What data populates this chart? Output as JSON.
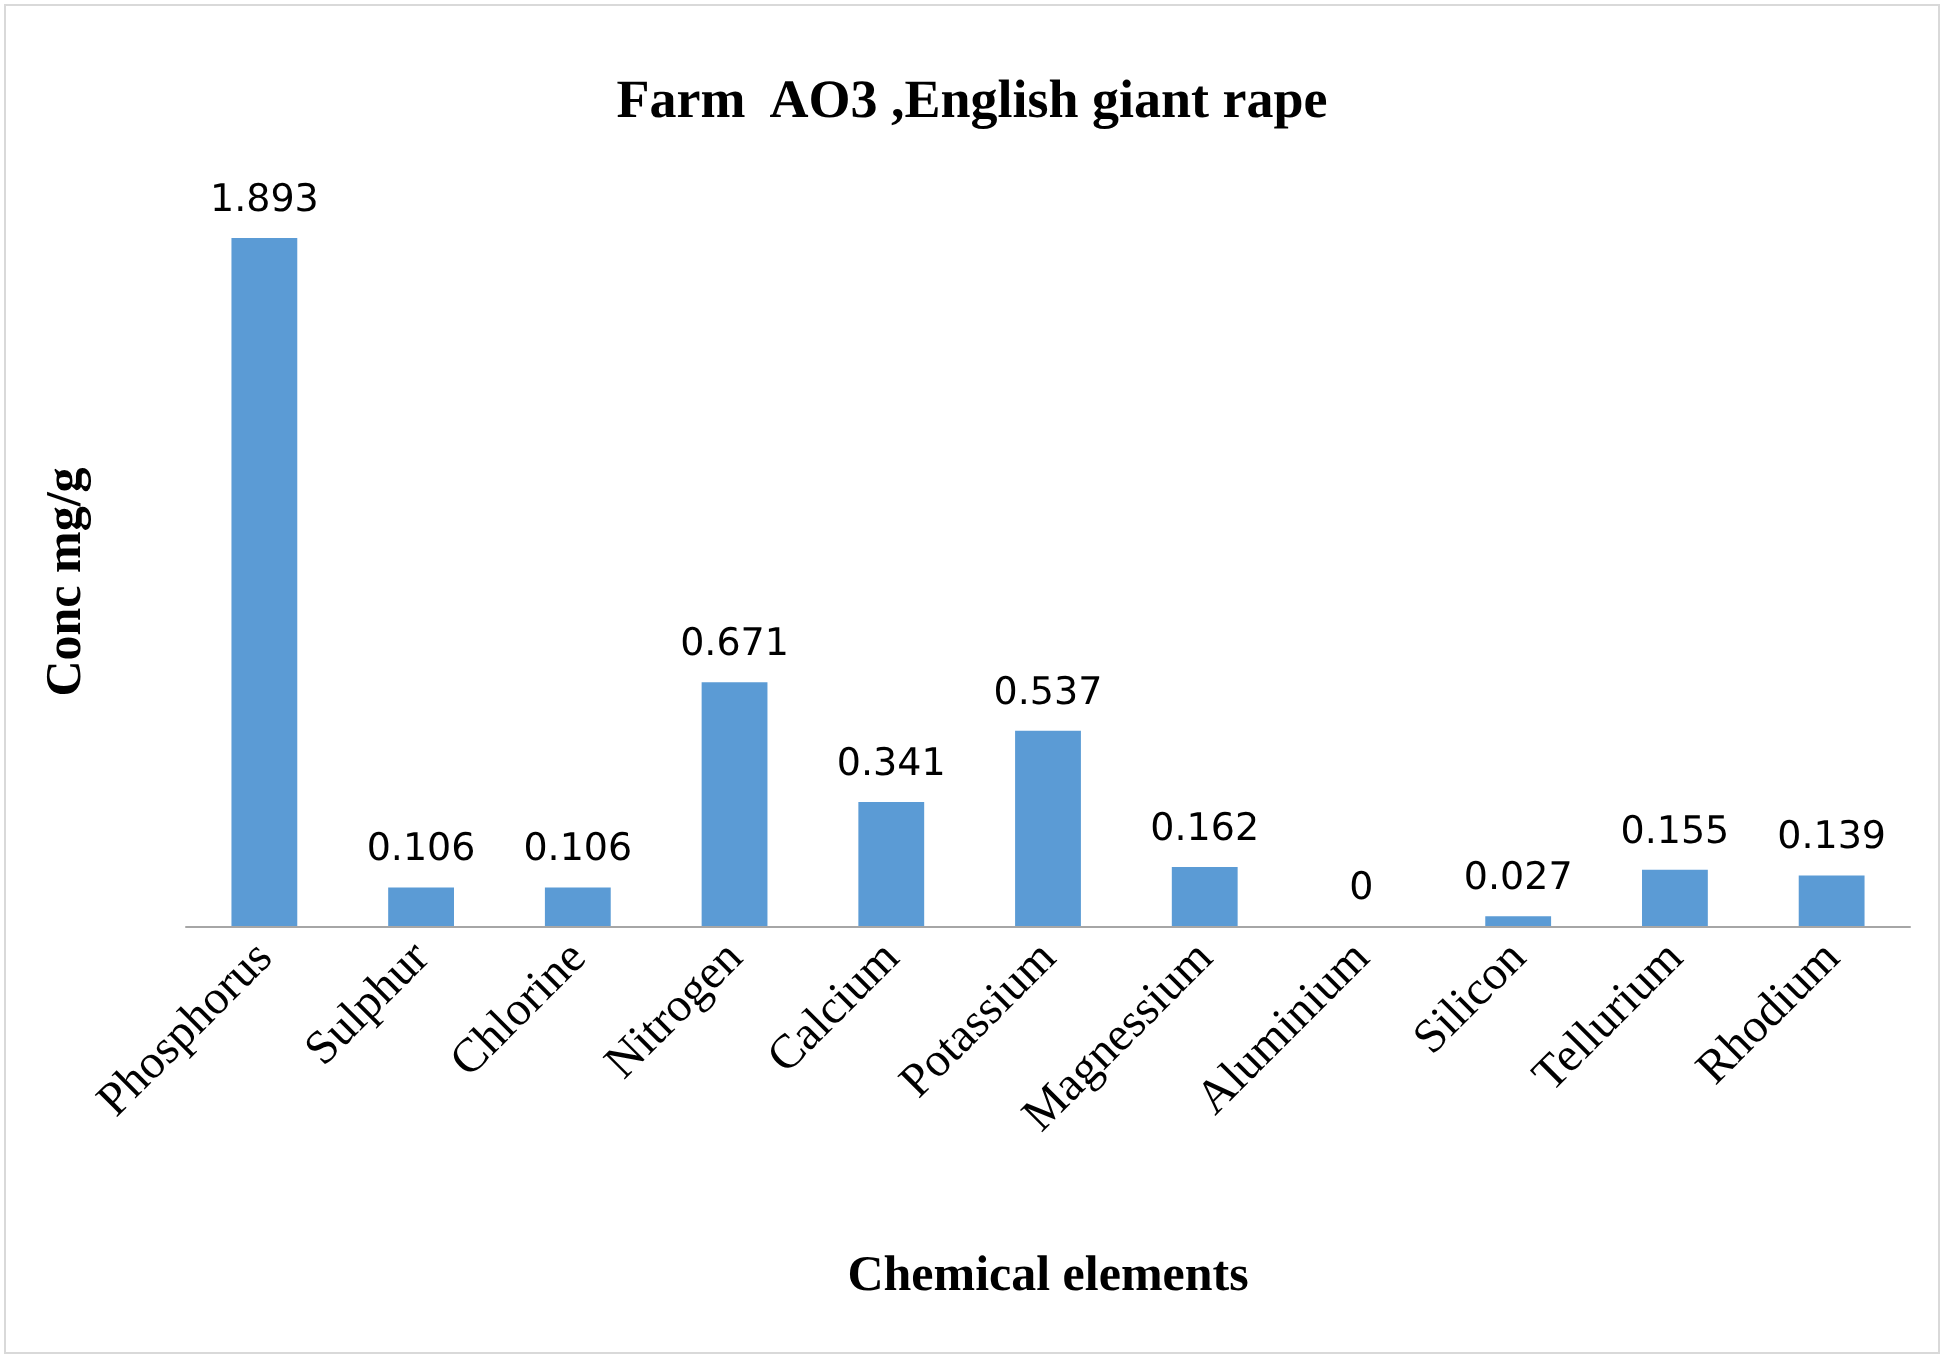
{
  "chart_data": {
    "type": "bar",
    "title": "Farm  AO3 ,English giant rape",
    "xlabel": "Chemical elements",
    "ylabel": "Conc mg/g",
    "categories": [
      "Phosphorus",
      "Sulphur",
      "Chlorine",
      "Nitrogen",
      "Calcium",
      "Potassium",
      "Magnessium",
      "Aluminium",
      "Silicon",
      "Tellurium",
      "Rhodium"
    ],
    "values": [
      1.893,
      0.106,
      0.106,
      0.671,
      0.341,
      0.537,
      0.162,
      0,
      0.027,
      0.155,
      0.139
    ],
    "color": "#5b9bd5",
    "data_labels": true
  }
}
